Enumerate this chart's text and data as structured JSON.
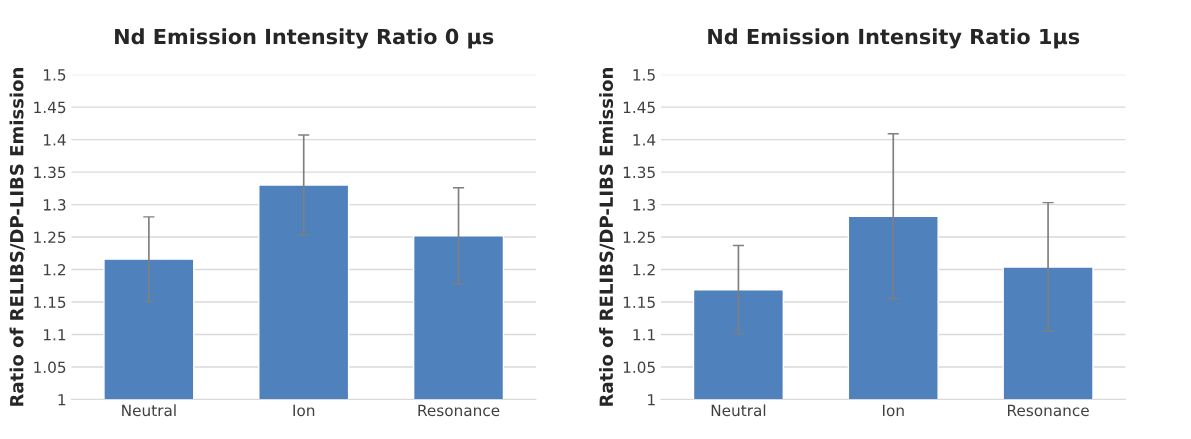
{
  "chart_data": [
    {
      "type": "bar",
      "title": "Nd Emission Intensity Ratio 0 μs",
      "ylabel": "Ratio of RELIBS/DP-LIBS Emission",
      "categories": [
        "Neutral",
        "Ion",
        "Resonance"
      ],
      "values": [
        1.216,
        1.33,
        1.252
      ],
      "errors": [
        0.065,
        0.077,
        0.074
      ],
      "color": "#4f81bd",
      "ylim": [
        1,
        1.5
      ],
      "yticks": [
        1,
        1.05,
        1.1,
        1.15,
        1.2,
        1.25,
        1.3,
        1.35,
        1.4,
        1.45,
        1.5
      ],
      "grid": "y"
    },
    {
      "type": "bar",
      "title": "Nd Emission Intensity Ratio 1μs",
      "ylabel": "Ratio of RELIBS/DP-LIBS Emission",
      "categories": [
        "Neutral",
        "Ion",
        "Resonance"
      ],
      "values": [
        1.169,
        1.282,
        1.204
      ],
      "errors": [
        0.068,
        0.127,
        0.099
      ],
      "color": "#4f81bd",
      "ylim": [
        1,
        1.5
      ],
      "yticks": [
        1,
        1.05,
        1.1,
        1.15,
        1.2,
        1.25,
        1.3,
        1.35,
        1.4,
        1.45,
        1.5
      ],
      "grid": "y"
    }
  ]
}
